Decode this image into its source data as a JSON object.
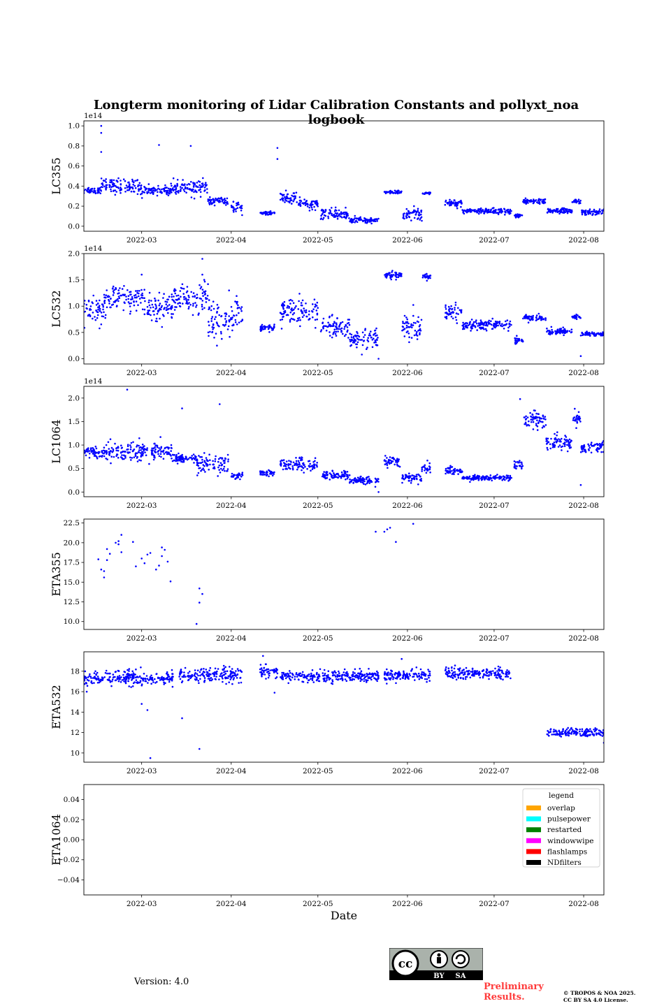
{
  "title": "Longterm monitoring of Lidar Calibration Constants and pollyxt_noa logbook",
  "version_text": "Version: 4.0",
  "preliminary_line1": "Preliminary",
  "preliminary_line2": "Results.",
  "copyright_line1": "© TROPOS & NOA 2025.",
  "copyright_line2": "CC BY SA 4.0 License.",
  "license_badge": {
    "by": "BY",
    "sa": "SA",
    "cc": "cc"
  },
  "colors": {
    "points": "#0000ff",
    "axes": "#000000",
    "prelim": "#ff3b3b"
  },
  "chart_data": [
    {
      "type": "scatter",
      "ylabel": "LC355",
      "xlabel": "",
      "offset_text": "1e14",
      "ylim": [
        -0.05,
        1.05
      ],
      "yticks": [
        0.0,
        0.2,
        0.4,
        0.6,
        0.8,
        1.0
      ],
      "ytick_labels": [
        "0.0",
        "0.2",
        "0.4",
        "0.6",
        "0.8",
        "1.0"
      ],
      "xticks": [
        "2022-03",
        "2022-04",
        "2022-05",
        "2022-06",
        "2022-07",
        "2022-08"
      ],
      "x_range": [
        "2022-02-09",
        "2022-08-08"
      ],
      "segments": [
        {
          "start": "2022-02-09",
          "end": "2022-02-15",
          "level": 0.36,
          "spread": 0.04
        },
        {
          "start": "2022-02-15",
          "end": "2022-03-01",
          "level": 0.4,
          "spread": 0.08
        },
        {
          "start": "2022-03-01",
          "end": "2022-03-12",
          "level": 0.36,
          "spread": 0.05
        },
        {
          "start": "2022-03-12",
          "end": "2022-03-24",
          "level": 0.38,
          "spread": 0.08
        },
        {
          "start": "2022-03-24",
          "end": "2022-03-31",
          "level": 0.25,
          "spread": 0.04
        },
        {
          "start": "2022-04-01",
          "end": "2022-04-05",
          "level": 0.18,
          "spread": 0.06
        },
        {
          "start": "2022-04-11",
          "end": "2022-04-16",
          "level": 0.13,
          "spread": 0.02
        },
        {
          "start": "2022-04-18",
          "end": "2022-04-24",
          "level": 0.28,
          "spread": 0.08
        },
        {
          "start": "2022-04-24",
          "end": "2022-05-01",
          "level": 0.22,
          "spread": 0.05
        },
        {
          "start": "2022-05-02",
          "end": "2022-05-12",
          "level": 0.12,
          "spread": 0.06
        },
        {
          "start": "2022-05-12",
          "end": "2022-05-22",
          "level": 0.06,
          "spread": 0.03
        },
        {
          "start": "2022-05-24",
          "end": "2022-05-30",
          "level": 0.34,
          "spread": 0.015
        },
        {
          "start": "2022-05-30",
          "end": "2022-06-06",
          "level": 0.12,
          "spread": 0.07
        },
        {
          "start": "2022-06-06",
          "end": "2022-06-09",
          "level": 0.33,
          "spread": 0.015
        },
        {
          "start": "2022-06-14",
          "end": "2022-06-20",
          "level": 0.23,
          "spread": 0.04
        },
        {
          "start": "2022-06-20",
          "end": "2022-07-07",
          "level": 0.15,
          "spread": 0.03
        },
        {
          "start": "2022-07-08",
          "end": "2022-07-11",
          "level": 0.1,
          "spread": 0.02
        },
        {
          "start": "2022-07-11",
          "end": "2022-07-19",
          "level": 0.25,
          "spread": 0.03
        },
        {
          "start": "2022-07-19",
          "end": "2022-07-28",
          "level": 0.15,
          "spread": 0.03
        },
        {
          "start": "2022-07-28",
          "end": "2022-07-31",
          "level": 0.25,
          "spread": 0.02
        },
        {
          "start": "2022-07-31",
          "end": "2022-08-08",
          "level": 0.14,
          "spread": 0.03
        }
      ],
      "outliers": [
        {
          "x": "2022-02-15",
          "y": 1.0
        },
        {
          "x": "2022-02-15",
          "y": 0.93
        },
        {
          "x": "2022-02-15",
          "y": 0.74
        },
        {
          "x": "2022-03-07",
          "y": 0.81
        },
        {
          "x": "2022-03-18",
          "y": 0.8
        },
        {
          "x": "2022-04-17",
          "y": 0.78
        },
        {
          "x": "2022-04-17",
          "y": 0.67
        }
      ]
    },
    {
      "type": "scatter",
      "ylabel": "LC532",
      "xlabel": "",
      "offset_text": "1e14",
      "ylim": [
        -0.1,
        2.0
      ],
      "yticks": [
        0.0,
        0.5,
        1.0,
        1.5,
        2.0
      ],
      "ytick_labels": [
        "0.0",
        "0.5",
        "1.0",
        "1.5",
        "2.0"
      ],
      "xticks": [
        "2022-03",
        "2022-04",
        "2022-05",
        "2022-06",
        "2022-07",
        "2022-08"
      ],
      "x_range": [
        "2022-02-09",
        "2022-08-08"
      ],
      "segments": [
        {
          "start": "2022-02-09",
          "end": "2022-02-16",
          "level": 0.9,
          "spread": 0.3
        },
        {
          "start": "2022-02-16",
          "end": "2022-03-01",
          "level": 1.15,
          "spread": 0.25
        },
        {
          "start": "2022-03-01",
          "end": "2022-03-12",
          "level": 1.0,
          "spread": 0.3
        },
        {
          "start": "2022-03-12",
          "end": "2022-03-24",
          "level": 1.15,
          "spread": 0.3
        },
        {
          "start": "2022-03-24",
          "end": "2022-04-05",
          "level": 0.75,
          "spread": 0.45
        },
        {
          "start": "2022-04-11",
          "end": "2022-04-16",
          "level": 0.58,
          "spread": 0.08
        },
        {
          "start": "2022-04-18",
          "end": "2022-05-01",
          "level": 0.9,
          "spread": 0.3
        },
        {
          "start": "2022-05-02",
          "end": "2022-05-12",
          "level": 0.6,
          "spread": 0.25
        },
        {
          "start": "2022-05-12",
          "end": "2022-05-22",
          "level": 0.35,
          "spread": 0.2
        },
        {
          "start": "2022-05-24",
          "end": "2022-05-30",
          "level": 1.58,
          "spread": 0.08
        },
        {
          "start": "2022-05-30",
          "end": "2022-06-06",
          "level": 0.6,
          "spread": 0.3
        },
        {
          "start": "2022-06-06",
          "end": "2022-06-09",
          "level": 1.55,
          "spread": 0.08
        },
        {
          "start": "2022-06-14",
          "end": "2022-06-20",
          "level": 0.9,
          "spread": 0.15
        },
        {
          "start": "2022-06-20",
          "end": "2022-07-07",
          "level": 0.65,
          "spread": 0.1
        },
        {
          "start": "2022-07-08",
          "end": "2022-07-11",
          "level": 0.35,
          "spread": 0.08
        },
        {
          "start": "2022-07-11",
          "end": "2022-07-19",
          "level": 0.78,
          "spread": 0.06
        },
        {
          "start": "2022-07-19",
          "end": "2022-07-28",
          "level": 0.52,
          "spread": 0.07
        },
        {
          "start": "2022-07-28",
          "end": "2022-07-31",
          "level": 0.8,
          "spread": 0.05
        },
        {
          "start": "2022-07-31",
          "end": "2022-08-08",
          "level": 0.47,
          "spread": 0.05
        }
      ],
      "outliers": [
        {
          "x": "2022-03-22",
          "y": 1.9
        },
        {
          "x": "2022-03-22",
          "y": 1.6
        },
        {
          "x": "2022-03-01",
          "y": 1.6
        },
        {
          "x": "2022-05-22",
          "y": 0.0
        },
        {
          "x": "2022-07-31",
          "y": 0.05
        }
      ]
    },
    {
      "type": "scatter",
      "ylabel": "LC1064",
      "xlabel": "",
      "offset_text": "1e14",
      "ylim": [
        -0.1,
        2.25
      ],
      "yticks": [
        0.0,
        0.5,
        1.0,
        1.5,
        2.0
      ],
      "ytick_labels": [
        "0.0",
        "0.5",
        "1.0",
        "1.5",
        "2.0"
      ],
      "xticks": [
        "2022-03",
        "2022-04",
        "2022-05",
        "2022-06",
        "2022-07",
        "2022-08"
      ],
      "x_range": [
        "2022-02-09",
        "2022-08-08"
      ],
      "segments": [
        {
          "start": "2022-02-09",
          "end": "2022-02-16",
          "level": 0.85,
          "spread": 0.1
        },
        {
          "start": "2022-02-16",
          "end": "2022-03-01",
          "level": 0.85,
          "spread": 0.25
        },
        {
          "start": "2022-03-01",
          "end": "2022-03-12",
          "level": 0.85,
          "spread": 0.2
        },
        {
          "start": "2022-03-12",
          "end": "2022-03-20",
          "level": 0.72,
          "spread": 0.1
        },
        {
          "start": "2022-03-20",
          "end": "2022-03-31",
          "level": 0.6,
          "spread": 0.25
        },
        {
          "start": "2022-04-01",
          "end": "2022-04-05",
          "level": 0.35,
          "spread": 0.08
        },
        {
          "start": "2022-04-11",
          "end": "2022-04-16",
          "level": 0.4,
          "spread": 0.06
        },
        {
          "start": "2022-04-18",
          "end": "2022-05-01",
          "level": 0.58,
          "spread": 0.15
        },
        {
          "start": "2022-05-02",
          "end": "2022-05-12",
          "level": 0.35,
          "spread": 0.1
        },
        {
          "start": "2022-05-12",
          "end": "2022-05-22",
          "level": 0.25,
          "spread": 0.1
        },
        {
          "start": "2022-05-24",
          "end": "2022-05-30",
          "level": 0.65,
          "spread": 0.12
        },
        {
          "start": "2022-05-30",
          "end": "2022-06-06",
          "level": 0.3,
          "spread": 0.1
        },
        {
          "start": "2022-06-06",
          "end": "2022-06-09",
          "level": 0.5,
          "spread": 0.1
        },
        {
          "start": "2022-06-14",
          "end": "2022-06-20",
          "level": 0.45,
          "spread": 0.1
        },
        {
          "start": "2022-06-20",
          "end": "2022-07-07",
          "level": 0.3,
          "spread": 0.06
        },
        {
          "start": "2022-07-08",
          "end": "2022-07-11",
          "level": 0.58,
          "spread": 0.1
        },
        {
          "start": "2022-07-11",
          "end": "2022-07-19",
          "level": 1.55,
          "spread": 0.2
        },
        {
          "start": "2022-07-19",
          "end": "2022-07-28",
          "level": 1.05,
          "spread": 0.2
        },
        {
          "start": "2022-07-28",
          "end": "2022-07-31",
          "level": 1.55,
          "spread": 0.15
        },
        {
          "start": "2022-07-31",
          "end": "2022-08-08",
          "level": 0.95,
          "spread": 0.15
        }
      ],
      "outliers": [
        {
          "x": "2022-02-24",
          "y": 2.18
        },
        {
          "x": "2022-03-28",
          "y": 1.87
        },
        {
          "x": "2022-03-15",
          "y": 1.78
        },
        {
          "x": "2022-07-10",
          "y": 1.98
        },
        {
          "x": "2022-05-22",
          "y": 0.0
        },
        {
          "x": "2022-07-31",
          "y": 0.15
        }
      ]
    },
    {
      "type": "scatter",
      "ylabel": "ETA355",
      "xlabel": "",
      "ylim": [
        9.0,
        23.0
      ],
      "yticks": [
        10.0,
        12.5,
        15.0,
        17.5,
        20.0,
        22.5
      ],
      "ytick_labels": [
        "10.0",
        "12.5",
        "15.0",
        "17.5",
        "20.0",
        "22.5"
      ],
      "xticks": [
        "2022-03",
        "2022-04",
        "2022-05",
        "2022-06",
        "2022-07",
        "2022-08"
      ],
      "x_range": [
        "2022-02-09",
        "2022-08-08"
      ],
      "points": [
        {
          "x": "2022-02-14",
          "y": 17.9
        },
        {
          "x": "2022-02-15",
          "y": 16.6
        },
        {
          "x": "2022-02-16",
          "y": 15.6
        },
        {
          "x": "2022-02-16",
          "y": 16.4
        },
        {
          "x": "2022-02-17",
          "y": 17.8
        },
        {
          "x": "2022-02-17",
          "y": 19.2
        },
        {
          "x": "2022-02-18",
          "y": 18.6
        },
        {
          "x": "2022-02-20",
          "y": 20.0
        },
        {
          "x": "2022-02-21",
          "y": 19.8
        },
        {
          "x": "2022-02-21",
          "y": 20.2
        },
        {
          "x": "2022-02-22",
          "y": 21.0
        },
        {
          "x": "2022-02-22",
          "y": 18.8
        },
        {
          "x": "2022-02-26",
          "y": 20.1
        },
        {
          "x": "2022-02-27",
          "y": 17.0
        },
        {
          "x": "2022-03-01",
          "y": 18.0
        },
        {
          "x": "2022-03-02",
          "y": 17.4
        },
        {
          "x": "2022-03-03",
          "y": 18.5
        },
        {
          "x": "2022-03-04",
          "y": 18.7
        },
        {
          "x": "2022-03-06",
          "y": 16.6
        },
        {
          "x": "2022-03-07",
          "y": 17.1
        },
        {
          "x": "2022-03-08",
          "y": 19.4
        },
        {
          "x": "2022-03-08",
          "y": 18.3
        },
        {
          "x": "2022-03-09",
          "y": 19.1
        },
        {
          "x": "2022-03-10",
          "y": 17.6
        },
        {
          "x": "2022-03-11",
          "y": 15.1
        },
        {
          "x": "2022-03-20",
          "y": 9.7
        },
        {
          "x": "2022-03-21",
          "y": 12.4
        },
        {
          "x": "2022-03-21",
          "y": 14.2
        },
        {
          "x": "2022-03-22",
          "y": 13.5
        },
        {
          "x": "2022-05-21",
          "y": 21.4
        },
        {
          "x": "2022-05-24",
          "y": 21.4
        },
        {
          "x": "2022-05-25",
          "y": 21.7
        },
        {
          "x": "2022-05-26",
          "y": 21.9
        },
        {
          "x": "2022-05-28",
          "y": 20.1
        },
        {
          "x": "2022-06-03",
          "y": 22.4
        }
      ]
    },
    {
      "type": "scatter",
      "ylabel": "ETA532",
      "xlabel": "",
      "ylim": [
        9.1,
        19.9
      ],
      "yticks": [
        10,
        12,
        14,
        16,
        18
      ],
      "ytick_labels": [
        "10",
        "12",
        "14",
        "16",
        "18"
      ],
      "xticks": [
        "2022-03",
        "2022-04",
        "2022-05",
        "2022-06",
        "2022-07",
        "2022-08"
      ],
      "x_range": [
        "2022-02-09",
        "2022-08-08"
      ],
      "segments": [
        {
          "start": "2022-02-09",
          "end": "2022-03-12",
          "level": 17.3,
          "spread": 0.8
        },
        {
          "start": "2022-03-14",
          "end": "2022-04-05",
          "level": 17.6,
          "spread": 0.8
        },
        {
          "start": "2022-04-11",
          "end": "2022-04-17",
          "level": 18.0,
          "spread": 0.6
        },
        {
          "start": "2022-04-18",
          "end": "2022-05-22",
          "level": 17.5,
          "spread": 0.6
        },
        {
          "start": "2022-05-24",
          "end": "2022-06-09",
          "level": 17.6,
          "spread": 0.7
        },
        {
          "start": "2022-06-14",
          "end": "2022-07-07",
          "level": 17.8,
          "spread": 0.6
        },
        {
          "start": "2022-07-19",
          "end": "2022-08-08",
          "level": 12.0,
          "spread": 0.45
        }
      ],
      "outliers": [
        {
          "x": "2022-03-04",
          "y": 9.5
        },
        {
          "x": "2022-03-21",
          "y": 10.4
        },
        {
          "x": "2022-03-03",
          "y": 14.2
        },
        {
          "x": "2022-03-15",
          "y": 13.4
        },
        {
          "x": "2022-03-01",
          "y": 14.8
        },
        {
          "x": "2022-04-12",
          "y": 19.5
        },
        {
          "x": "2022-04-16",
          "y": 15.9
        },
        {
          "x": "2022-05-30",
          "y": 19.2
        },
        {
          "x": "2022-08-08",
          "y": 11.0
        },
        {
          "x": "2022-02-10",
          "y": 16.0
        }
      ]
    },
    {
      "type": "scatter",
      "ylabel": "ETA1064",
      "xlabel": "Date",
      "ylim": [
        -0.055,
        0.055
      ],
      "yticks": [
        -0.04,
        -0.02,
        0.0,
        0.02,
        0.04
      ],
      "ytick_labels": [
        "−0.04",
        "−0.02",
        "0.00",
        "0.02",
        "0.04"
      ],
      "xticks": [
        "2022-03",
        "2022-04",
        "2022-05",
        "2022-06",
        "2022-07",
        "2022-08"
      ],
      "x_range": [
        "2022-02-09",
        "2022-08-08"
      ],
      "points": [],
      "legend": {
        "title": "legend",
        "placement": "top-right",
        "entries": [
          {
            "label": "overlap",
            "color": "#ffa500"
          },
          {
            "label": "pulsepower",
            "color": "#00ffff"
          },
          {
            "label": "restarted",
            "color": "#008000"
          },
          {
            "label": "windowwipe",
            "color": "#ff00ff"
          },
          {
            "label": "flashlamps",
            "color": "#ff0000"
          },
          {
            "label": "NDfilters",
            "color": "#000000"
          }
        ]
      }
    }
  ]
}
